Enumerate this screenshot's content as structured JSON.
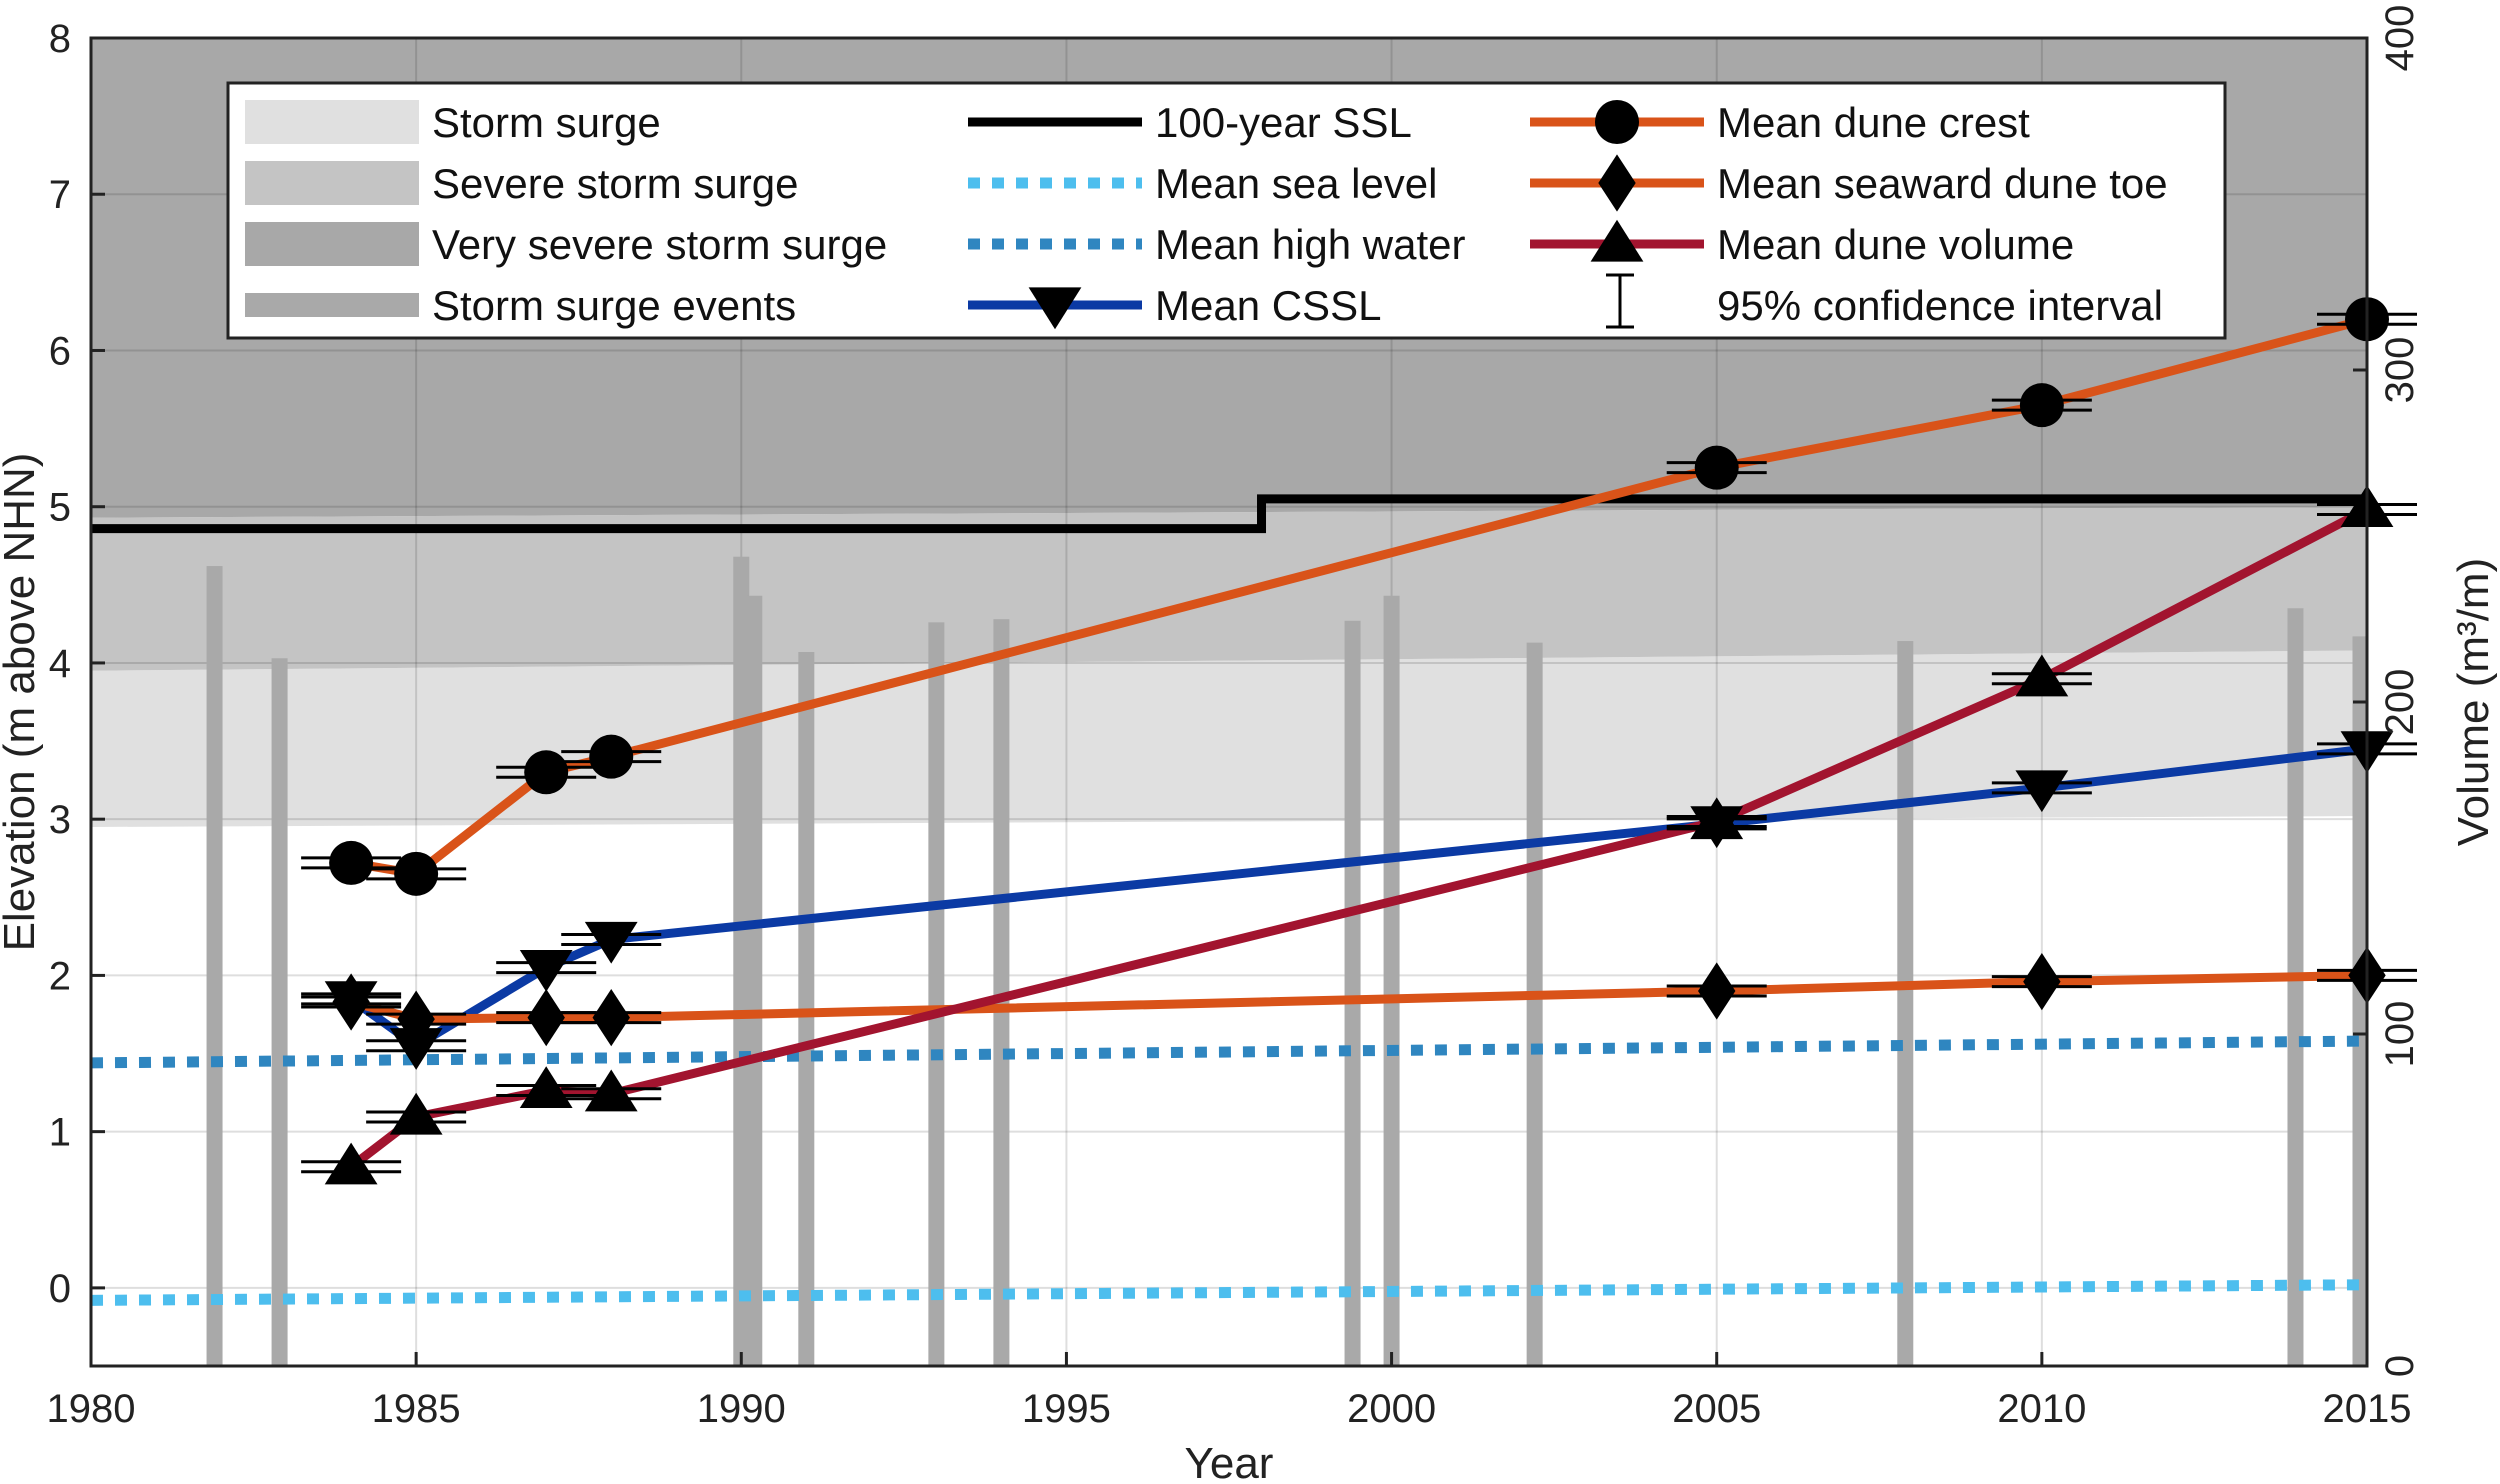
{
  "chart_data": {
    "type": "line",
    "title": "",
    "xlabel": "Year",
    "ylabel": "Elevation (m above NHN)",
    "y2label": "Volume (m³/m)",
    "xlim": [
      1980,
      2015
    ],
    "ylim": [
      -0.5,
      8
    ],
    "y2lim": [
      0,
      400
    ],
    "xticks": [
      1980,
      1985,
      1990,
      1995,
      2000,
      2005,
      2010,
      2015
    ],
    "yticks": [
      0,
      1,
      2,
      3,
      4,
      5,
      6,
      7,
      8
    ],
    "y2ticks": [
      0,
      100,
      200,
      300,
      400
    ],
    "grid": true,
    "legend_placement": "top",
    "bands": [
      {
        "name": "Storm surge",
        "color": "#e0e0e0",
        "x": [
          1980,
          2015
        ],
        "lower": [
          2.95,
          3.02
        ],
        "upper": [
          3.95,
          4.08
        ]
      },
      {
        "name": "Severe storm surge",
        "color": "#c4c4c4",
        "x": [
          1980,
          2015
        ],
        "lower": [
          3.95,
          4.08
        ],
        "upper": [
          4.93,
          5.0
        ]
      },
      {
        "name": "Very severe storm surge",
        "color": "#a8a8a8",
        "x": [
          1980,
          2015
        ],
        "lower": [
          4.93,
          5.0
        ],
        "upper": [
          8,
          8
        ]
      }
    ],
    "storm_surge_events": {
      "name": "Storm surge events",
      "color": "#a9a9a9",
      "x": [
        1981.9,
        1982.9,
        1990.0,
        1990.2,
        1991.0,
        1993.0,
        1994.0,
        1999.4,
        2000.0,
        2002.2,
        2007.9,
        2013.9,
        2014.9
      ],
      "peak": [
        4.62,
        4.03,
        4.68,
        4.43,
        4.07,
        4.26,
        4.28,
        4.27,
        4.43,
        4.13,
        4.14,
        4.35,
        4.17
      ]
    },
    "series": [
      {
        "name": "100-year SSL",
        "color": "#000000",
        "style": "step",
        "x": [
          1980,
          1998,
          1998,
          2015
        ],
        "y": [
          4.86,
          4.86,
          5.05,
          5.05
        ]
      },
      {
        "name": "Mean sea level",
        "color": "#4dbeee",
        "style": "dotted",
        "x": [
          1980,
          2015
        ],
        "y": [
          -0.08,
          0.02
        ]
      },
      {
        "name": "Mean high water",
        "color": "#2f86c0",
        "style": "dotted",
        "x": [
          1980,
          2015
        ],
        "y": [
          1.44,
          1.58
        ]
      },
      {
        "name": "Mean CSSL",
        "color": "#0b3aa4",
        "marker": "triangle-down",
        "x": [
          1984,
          1985,
          1987,
          1988,
          2005,
          2010,
          2015
        ],
        "y": [
          1.85,
          1.55,
          2.05,
          2.23,
          2.97,
          3.2,
          3.45
        ]
      },
      {
        "name": "Mean dune crest",
        "color": "#d95319",
        "marker": "circle",
        "x": [
          1984,
          1985,
          1987,
          1988,
          2005,
          2010,
          2015
        ],
        "y": [
          2.72,
          2.65,
          3.3,
          3.4,
          5.25,
          5.65,
          6.2
        ]
      },
      {
        "name": "Mean seaward dune toe",
        "color": "#d95319",
        "marker": "diamond",
        "x": [
          1984,
          1985,
          1987,
          1988,
          2005,
          2010,
          2015
        ],
        "y": [
          1.83,
          1.72,
          1.73,
          1.73,
          1.9,
          1.96,
          2.0
        ]
      },
      {
        "name": "Mean dune volume",
        "color": "#a2142f",
        "marker": "triangle-up",
        "axis": "right",
        "x": [
          1984,
          1985,
          1987,
          1988,
          2005,
          2010,
          2015
        ],
        "y": [
          60,
          75,
          83,
          82,
          164,
          207,
          258
        ]
      }
    ],
    "legend": [
      "Storm surge",
      "Severe storm surge",
      "Very severe storm surge",
      "Storm surge events",
      "100-year SSL",
      "Mean sea level",
      "Mean high water",
      "Mean CSSL",
      "Mean dune crest",
      "Mean seaward dune toe",
      "Mean dune volume",
      "95% confidence interval"
    ]
  }
}
